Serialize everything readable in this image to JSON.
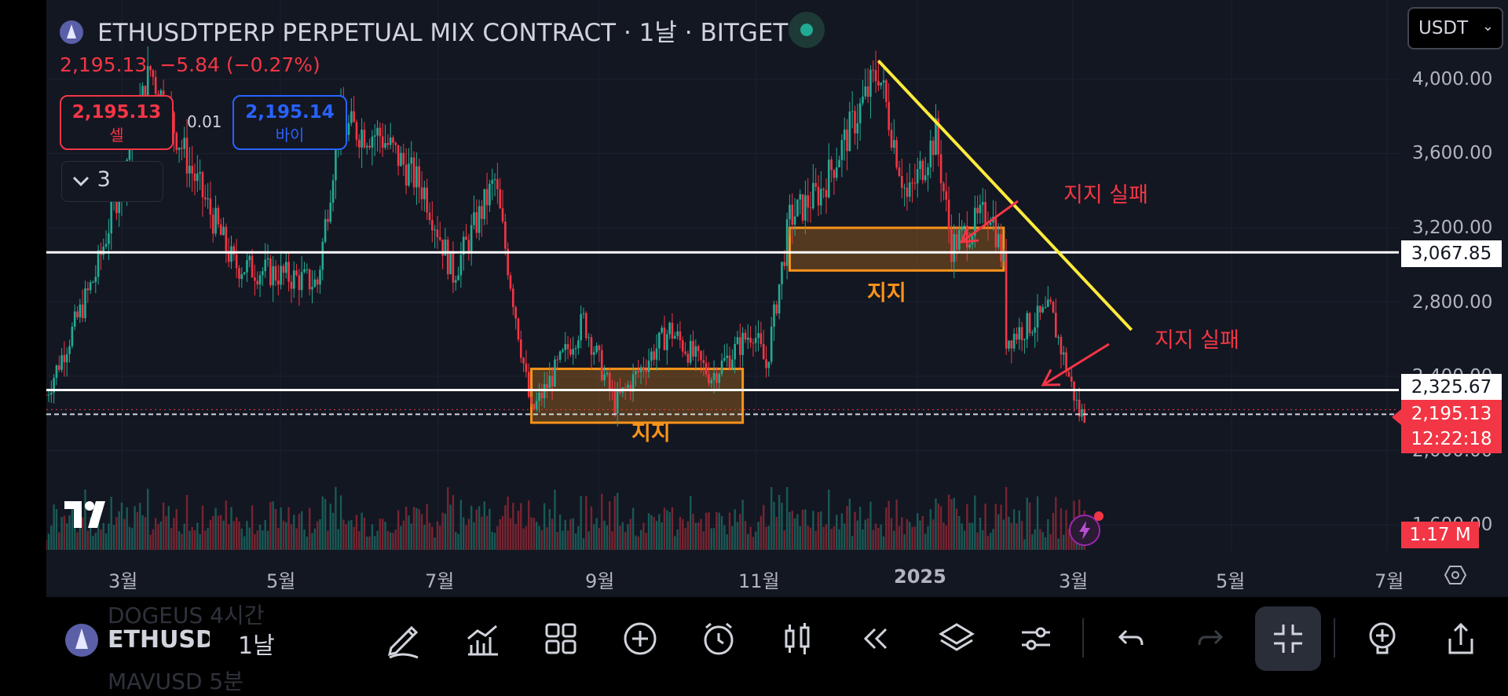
{
  "header": {
    "title": "ETHUSDTPERP PERPETUAL MIX CONTRACT · 1날 · BITGET",
    "last_price": "2,195.13",
    "change": "−5.84 (−0.27%)",
    "sell_price": "2,195.13",
    "sell_label": "셀",
    "spread": "0.01",
    "buy_price": "2,195.14",
    "buy_label": "바이",
    "indicators_count": "3",
    "currency": "USDT"
  },
  "price_axis": {
    "ticks": [
      "4,000.00",
      "3,600.00",
      "3,200.00",
      "2,800.00",
      "2,400.00",
      "2,000.00",
      "1,600.00"
    ],
    "level_labels": [
      "3,067.85",
      "2,325.67"
    ],
    "current_price": "2,195.13",
    "countdown": "12:22:18",
    "volume_label": "1.17 M"
  },
  "time_axis": {
    "ticks": [
      "3월",
      "5월",
      "7월",
      "9월",
      "11월",
      "2025",
      "3월",
      "5월",
      "7월"
    ]
  },
  "annotations": {
    "support_fail_1": "지지 실패",
    "support_fail_2": "지지 실패",
    "support_1": "지지",
    "support_2": "지지"
  },
  "toolbar": {
    "symbol": "ETHUSD",
    "timeframe": "1날",
    "ghost_above": "DOGEUS    4시간",
    "ghost_below": "MAVUSD    5분",
    "icons": [
      "draw-icon",
      "indicators-icon",
      "layout-icon",
      "add-icon",
      "alert-icon",
      "candles-icon",
      "replay-icon",
      "layers-icon",
      "settings-icon",
      "undo-icon",
      "redo-icon",
      "exit-fullscreen-icon",
      "ideas-icon",
      "share-icon"
    ]
  },
  "colors": {
    "up": "#22ab94",
    "down": "#f23645",
    "trendline": "#ffeb3b",
    "support_zone": "#f7931a",
    "background": "#131722"
  },
  "chart_data": {
    "type": "candlestick",
    "symbol": "ETHUSDTPERP",
    "interval": "1D",
    "x_range": [
      "2024-02",
      "2025-07"
    ],
    "y_range": [
      1600,
      4100
    ],
    "horizontal_levels": [
      3067.85,
      2325.67
    ],
    "last_price": 2195.13,
    "support_zones": [
      {
        "from": "2024-08-05",
        "to": "2024-10-25",
        "low": 2150,
        "high": 2440
      },
      {
        "from": "2024-11-12",
        "to": "2025-02-02",
        "low": 2970,
        "high": 3200
      }
    ],
    "trendline": {
      "from": [
        "2024-12-16",
        4100
      ],
      "to": [
        "2025-03-23",
        2650
      ]
    },
    "price_path": [
      [
        "2024-02-01",
        2300
      ],
      [
        "2024-02-20",
        2950
      ],
      [
        "2024-03-12",
        4050
      ],
      [
        "2024-03-28",
        3500
      ],
      [
        "2024-04-13",
        3000
      ],
      [
        "2024-04-30",
        2950
      ],
      [
        "2024-05-15",
        2900
      ],
      [
        "2024-05-23",
        3750
      ],
      [
        "2024-06-08",
        3700
      ],
      [
        "2024-06-25",
        3400
      ],
      [
        "2024-07-06",
        2950
      ],
      [
        "2024-07-22",
        3450
      ],
      [
        "2024-08-05",
        2200
      ],
      [
        "2024-08-25",
        2700
      ],
      [
        "2024-09-06",
        2250
      ],
      [
        "2024-09-27",
        2650
      ],
      [
        "2024-10-13",
        2400
      ],
      [
        "2024-10-29",
        2650
      ],
      [
        "2024-11-03",
        2450
      ],
      [
        "2024-11-12",
        3250
      ],
      [
        "2024-11-24",
        3400
      ],
      [
        "2024-12-16",
        4050
      ],
      [
        "2024-12-27",
        3350
      ],
      [
        "2025-01-07",
        3700
      ],
      [
        "2025-01-13",
        3100
      ],
      [
        "2025-01-28",
        3300
      ],
      [
        "2025-02-02",
        3000
      ],
      [
        "2025-02-03",
        2600
      ],
      [
        "2025-02-20",
        2750
      ],
      [
        "2025-03-03",
        2200
      ],
      [
        "2025-03-06",
        2195.13
      ]
    ]
  }
}
